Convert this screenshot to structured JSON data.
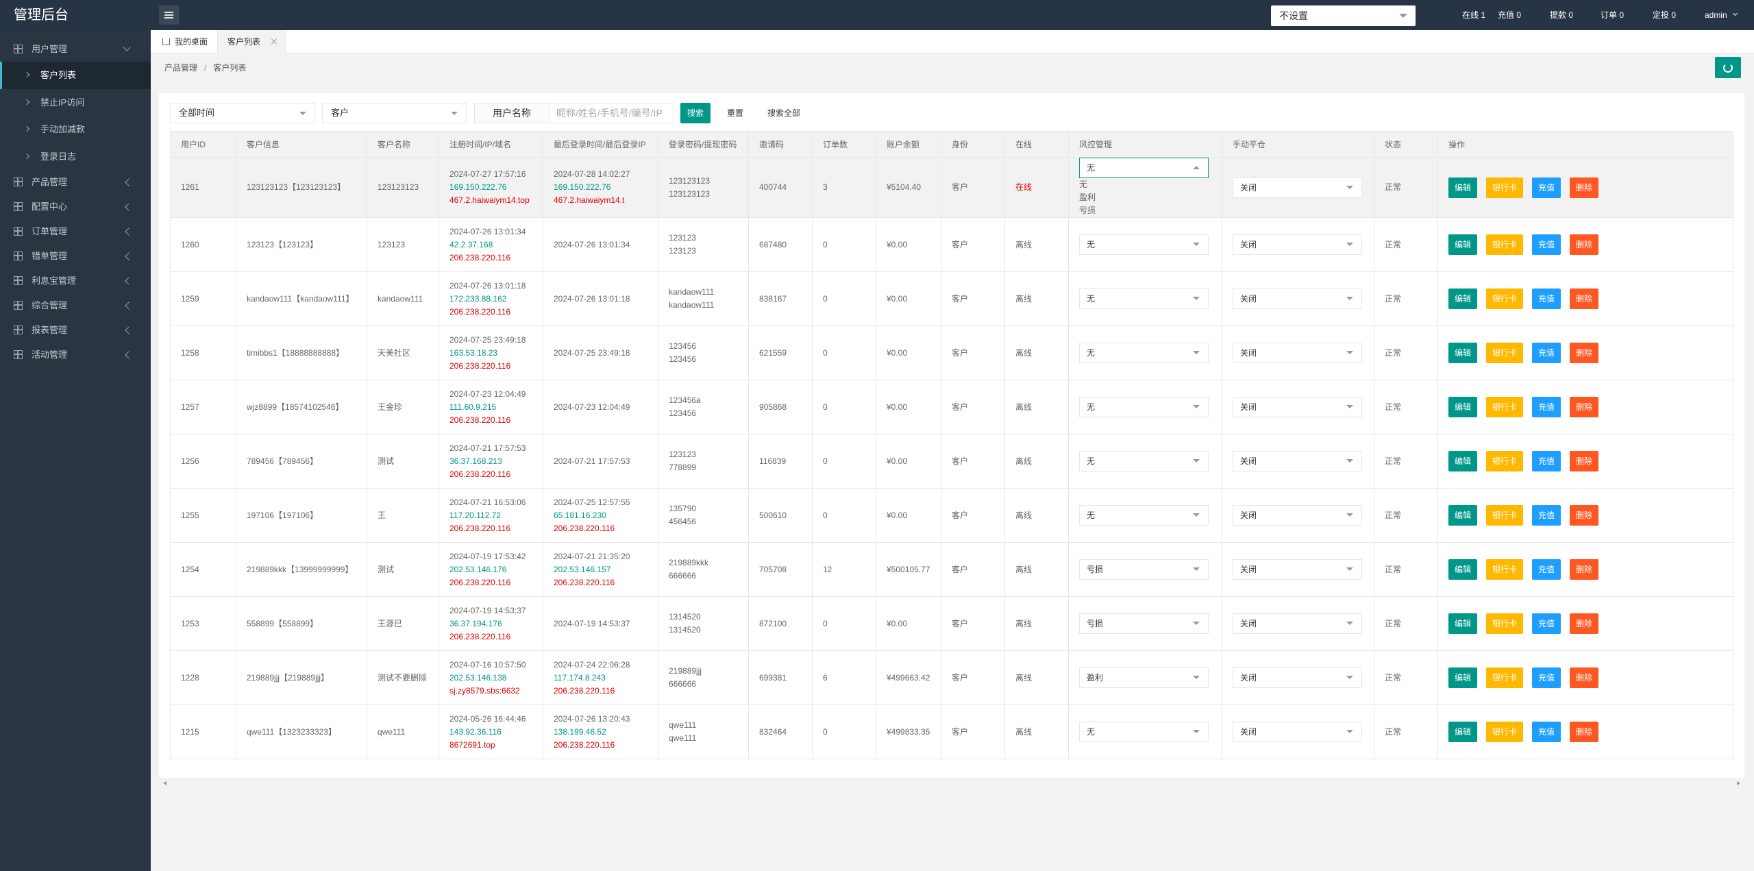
{
  "sidebar": {
    "title": "管理后台",
    "menu": [
      {
        "label": "用户管理",
        "children": [
          "客户列表",
          "禁止IP访问",
          "手动加减款",
          "登录日志"
        ]
      },
      {
        "label": "产品管理"
      },
      {
        "label": "配置中心"
      },
      {
        "label": "订单管理"
      },
      {
        "label": "错单管理"
      },
      {
        "label": "利息宝管理"
      },
      {
        "label": "综合管理"
      },
      {
        "label": "报表管理"
      },
      {
        "label": "活动管理"
      }
    ]
  },
  "topbar": {
    "select": "不设置",
    "stats": [
      "在线 1",
      "充值 0",
      "提款 0",
      "订单 0",
      "定投 0"
    ],
    "user": "admin"
  },
  "tabs": [
    "我的桌面",
    "客户列表"
  ],
  "breadcrumb": {
    "items": [
      "产品管理",
      "客户列表"
    ],
    "separator": "/"
  },
  "filters": {
    "time": "全部时间",
    "role": "客户",
    "field_label": "用户名称",
    "placeholder": "昵称/姓名/手机号/编号/IP",
    "buttons": [
      "搜索",
      "重置",
      "搜索全部"
    ]
  },
  "table": {
    "headers": [
      "用户ID",
      "客户信息",
      "客户名称",
      "注册时间/IP/域名",
      "最后登录时间/最后登录IP",
      "登录密码/提现密码",
      "邀请码",
      "订单数",
      "账户余额",
      "身份",
      "在线",
      "风控管理",
      "手动平仓",
      "状态",
      "操作"
    ],
    "actions": [
      "编辑",
      "银行卡",
      "充值",
      "删除"
    ],
    "risk_options": [
      "无",
      "盈利",
      "亏损"
    ],
    "rows": [
      {
        "id": "1261",
        "info": "123123123【123123123】",
        "name": "123123123",
        "reg": [
          "2024-07-27 17:57:16",
          "169.150.222.76",
          "467.2.haiwaiym14.top"
        ],
        "last": [
          "2024-07-28 14:02:27",
          "169.150.222.76",
          "467.2.haiwaiym14.t"
        ],
        "pwd": [
          "123123123",
          "123123123"
        ],
        "invite": "400744",
        "orders": "3",
        "balance": "¥5104.40",
        "role": "客户",
        "online": "在线",
        "online_color": "#e00000",
        "risk": "无",
        "risk_open": true,
        "close": "关闭",
        "status": "正常"
      },
      {
        "id": "1260",
        "info": "123123【123123】",
        "name": "123123",
        "reg": [
          "2024-07-26 13:01:34",
          "42.2.37.168",
          "206.238.220.116"
        ],
        "last": [
          "2024-07-26 13:01:34"
        ],
        "pwd": [
          "123123",
          "123123"
        ],
        "invite": "687480",
        "orders": "0",
        "balance": "¥0.00",
        "role": "客户",
        "online": "离线",
        "risk": "无",
        "close": "关闭",
        "status": "正常"
      },
      {
        "id": "1259",
        "info": "kandaow111【kandaow111】",
        "name": "kandaow111",
        "reg": [
          "2024-07-26 13:01:18",
          "172.233.88.162",
          "206.238.220.116"
        ],
        "last": [
          "2024-07-26 13:01:18"
        ],
        "pwd": [
          "kandaow111",
          "kandaow111"
        ],
        "invite": "838167",
        "orders": "0",
        "balance": "¥0.00",
        "role": "客户",
        "online": "离线",
        "risk": "无",
        "close": "关闭",
        "status": "正常"
      },
      {
        "id": "1258",
        "info": "timibbs1【18888888888】",
        "name": "天美社区",
        "reg": [
          "2024-07-25 23:49:18",
          "163.53.18.23",
          "206.238.220.116"
        ],
        "last": [
          "2024-07-25 23:49:18"
        ],
        "pwd": [
          "123456",
          "123456"
        ],
        "invite": "621559",
        "orders": "0",
        "balance": "¥0.00",
        "role": "客户",
        "online": "离线",
        "risk": "无",
        "close": "关闭",
        "status": "正常"
      },
      {
        "id": "1257",
        "info": "wjz8899【18574102546】",
        "name": "王金珍",
        "reg": [
          "2024-07-23 12:04:49",
          "111.60.9.215",
          "206.238.220.116"
        ],
        "last": [
          "2024-07-23 12:04:49"
        ],
        "pwd": [
          "123456a",
          "123456"
        ],
        "invite": "905868",
        "orders": "0",
        "balance": "¥0.00",
        "role": "客户",
        "online": "离线",
        "risk": "无",
        "close": "关闭",
        "status": "正常"
      },
      {
        "id": "1256",
        "info": "789456【789456】",
        "name": "测试",
        "reg": [
          "2024-07-21 17:57:53",
          "36.37.168.213",
          "206.238.220.116"
        ],
        "last": [
          "2024-07-21 17:57:53"
        ],
        "pwd": [
          "123123",
          "778899"
        ],
        "invite": "116839",
        "orders": "0",
        "balance": "¥0.00",
        "role": "客户",
        "online": "离线",
        "risk": "无",
        "close": "关闭",
        "status": "正常"
      },
      {
        "id": "1255",
        "info": "197106【197106】",
        "name": "王",
        "reg": [
          "2024-07-21 16:53:06",
          "117.20.112.72",
          "206.238.220.116"
        ],
        "last": [
          "2024-07-25 12:57:55",
          "65.181.16.230",
          "206.238.220.116"
        ],
        "pwd": [
          "135790",
          "456456"
        ],
        "invite": "500610",
        "orders": "0",
        "balance": "¥0.00",
        "role": "客户",
        "online": "离线",
        "risk": "无",
        "close": "关闭",
        "status": "正常"
      },
      {
        "id": "1254",
        "info": "219889kkk【13999999999】",
        "name": "测试",
        "reg": [
          "2024-07-19 17:53:42",
          "202.53.146.176",
          "206.238.220.116"
        ],
        "last": [
          "2024-07-21 21:35:20",
          "202.53.146.157",
          "206.238.220.116"
        ],
        "pwd": [
          "219889kkk",
          "666666"
        ],
        "invite": "705708",
        "orders": "12",
        "balance": "¥500105.77",
        "role": "客户",
        "online": "离线",
        "risk": "亏损",
        "close": "关闭",
        "status": "正常"
      },
      {
        "id": "1253",
        "info": "558899【558899】",
        "name": "王源巳",
        "reg": [
          "2024-07-19 14:53:37",
          "36.37.194.176",
          "206.238.220.116"
        ],
        "last": [
          "2024-07-19 14:53:37"
        ],
        "pwd": [
          "1314520",
          "1314520"
        ],
        "invite": "872100",
        "orders": "0",
        "balance": "¥0.00",
        "role": "客户",
        "online": "离线",
        "risk": "亏损",
        "close": "关闭",
        "status": "正常"
      },
      {
        "id": "1228",
        "info": "219889jjj【219889jjj】",
        "name": "测试不要删除",
        "reg": [
          "2024-07-16 10:57:50",
          "202.53.146.138",
          "sj.zy8579.sbs:6632"
        ],
        "last": [
          "2024-07-24 22:06:28",
          "117.174.8.243",
          "206.238.220.116"
        ],
        "pwd": [
          "219889jjj",
          "666666"
        ],
        "invite": "699381",
        "orders": "6",
        "balance": "¥499663.42",
        "role": "客户",
        "online": "离线",
        "risk": "盈利",
        "close": "关闭",
        "status": "正常"
      },
      {
        "id": "1215",
        "info": "qwe111【1323233323】",
        "name": "qwe111",
        "reg": [
          "2024-05-26 16:44:46",
          "143.92.36.116",
          "8672691.top"
        ],
        "last": [
          "2024-07-26 13:20:43",
          "138.199.46.52",
          "206.238.220.116"
        ],
        "pwd": [
          "qwe111",
          "qwe111"
        ],
        "invite": "832464",
        "orders": "0",
        "balance": "¥499833.35",
        "role": "客户",
        "online": "离线",
        "risk": "无",
        "close": "关闭",
        "status": "正常"
      }
    ]
  }
}
